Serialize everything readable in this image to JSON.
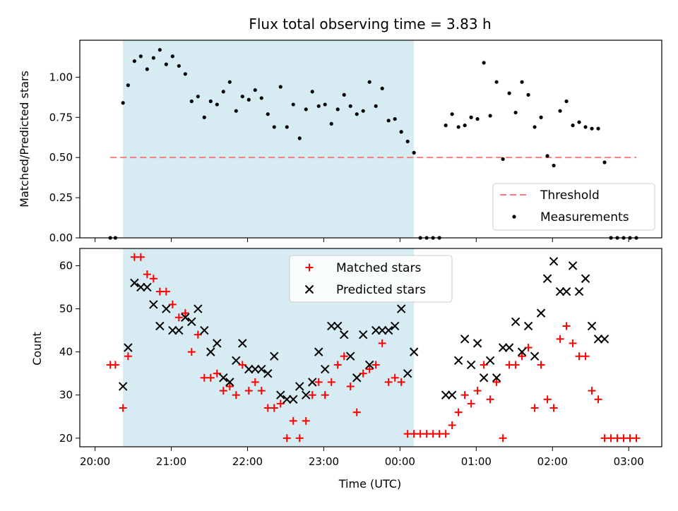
{
  "chart_data": [
    {
      "type": "scatter",
      "title": "Flux total observing time = 3.83 h",
      "xlabel": "",
      "ylabel": "Matched/Predicted stars",
      "ylim": [
        0,
        1.23
      ],
      "yticks": [
        0,
        0.25,
        0.5,
        0.75,
        1.0
      ],
      "ytick_labels": [
        "0.00",
        "0.25",
        "0.50",
        "0.75",
        "1.00"
      ],
      "grid": false,
      "legend_position": "bottom-right",
      "shaded_region": {
        "from": "20:22",
        "to": "00:11",
        "color": "#add8e6"
      },
      "threshold": {
        "name": "Threshold",
        "from": "20:12",
        "to": "03:06",
        "value": 0.5,
        "color": "#f08080"
      },
      "series": [
        {
          "name": "Measurements",
          "color": "#000000",
          "points": [
            [
              "20:12",
              0
            ],
            [
              "20:16",
              0
            ],
            [
              "20:22",
              0.84
            ],
            [
              "20:26",
              0.95
            ],
            [
              "20:31",
              1.1
            ],
            [
              "20:36",
              1.13
            ],
            [
              "20:41",
              1.05
            ],
            [
              "20:46",
              1.12
            ],
            [
              "20:51",
              1.17
            ],
            [
              "20:56",
              1.08
            ],
            [
              "21:01",
              1.13
            ],
            [
              "21:06",
              1.07
            ],
            [
              "21:11",
              1.02
            ],
            [
              "21:16",
              0.85
            ],
            [
              "21:21",
              0.88
            ],
            [
              "21:26",
              0.75
            ],
            [
              "21:31",
              0.85
            ],
            [
              "21:36",
              0.83
            ],
            [
              "21:41",
              0.91
            ],
            [
              "21:46",
              0.97
            ],
            [
              "21:51",
              0.79
            ],
            [
              "21:56",
              0.88
            ],
            [
              "22:01",
              0.86
            ],
            [
              "22:06",
              0.92
            ],
            [
              "22:11",
              0.87
            ],
            [
              "22:16",
              0.77
            ],
            [
              "22:21",
              0.69
            ],
            [
              "22:26",
              0.94
            ],
            [
              "22:31",
              0.69
            ],
            [
              "22:36",
              0.83
            ],
            [
              "22:41",
              0.62
            ],
            [
              "22:46",
              0.8
            ],
            [
              "22:51",
              0.91
            ],
            [
              "22:56",
              0.82
            ],
            [
              "23:01",
              0.83
            ],
            [
              "23:06",
              0.71
            ],
            [
              "23:11",
              0.8
            ],
            [
              "23:16",
              0.89
            ],
            [
              "23:21",
              0.82
            ],
            [
              "23:26",
              0.77
            ],
            [
              "23:31",
              0.79
            ],
            [
              "23:36",
              0.97
            ],
            [
              "23:41",
              0.82
            ],
            [
              "23:46",
              0.93
            ],
            [
              "23:51",
              0.73
            ],
            [
              "23:56",
              0.74
            ],
            [
              "00:01",
              0.66
            ],
            [
              "00:06",
              0.6
            ],
            [
              "00:11",
              0.53
            ],
            [
              "00:16",
              0
            ],
            [
              "00:21",
              0
            ],
            [
              "00:26",
              0
            ],
            [
              "00:31",
              0
            ],
            [
              "00:36",
              0.7
            ],
            [
              "00:41",
              0.77
            ],
            [
              "00:46",
              0.69
            ],
            [
              "00:51",
              0.7
            ],
            [
              "00:56",
              0.75
            ],
            [
              "01:01",
              0.74
            ],
            [
              "01:06",
              1.09
            ],
            [
              "01:11",
              0.76
            ],
            [
              "01:16",
              0.97
            ],
            [
              "01:21",
              0.49
            ],
            [
              "01:26",
              0.9
            ],
            [
              "01:31",
              0.78
            ],
            [
              "01:36",
              0.97
            ],
            [
              "01:41",
              0.89
            ],
            [
              "01:46",
              0.69
            ],
            [
              "01:51",
              0.75
            ],
            [
              "01:56",
              0.51
            ],
            [
              "02:01",
              0.45
            ],
            [
              "02:06",
              0.79
            ],
            [
              "02:11",
              0.85
            ],
            [
              "02:16",
              0.7
            ],
            [
              "02:21",
              0.72
            ],
            [
              "02:26",
              0.69
            ],
            [
              "02:31",
              0.68
            ],
            [
              "02:36",
              0.68
            ],
            [
              "02:41",
              0.47
            ],
            [
              "02:46",
              0
            ],
            [
              "02:51",
              0
            ],
            [
              "02:56",
              0
            ],
            [
              "03:01",
              0
            ],
            [
              "03:06",
              0
            ]
          ]
        }
      ]
    },
    {
      "type": "scatter",
      "title": "",
      "xlabel": "Time (UTC)",
      "ylabel": "Count",
      "xlim": [
        "19:48",
        "03:26"
      ],
      "ylim": [
        18,
        64
      ],
      "yticks": [
        20,
        30,
        40,
        50,
        60
      ],
      "xticks": [
        "20:00",
        "21:00",
        "22:00",
        "23:00",
        "00:00",
        "01:00",
        "02:00",
        "03:00"
      ],
      "grid": false,
      "legend_position": "top-center",
      "shaded_region": {
        "from": "20:22",
        "to": "00:11",
        "color": "#add8e6"
      },
      "series": [
        {
          "name": "Matched stars",
          "color": "#ff0000",
          "marker": "+",
          "points": [
            [
              "20:12",
              37
            ],
            [
              "20:16",
              37
            ],
            [
              "20:22",
              27
            ],
            [
              "20:26",
              39
            ],
            [
              "20:31",
              62
            ],
            [
              "20:36",
              62
            ],
            [
              "20:41",
              58
            ],
            [
              "20:46",
              57
            ],
            [
              "20:51",
              54
            ],
            [
              "20:56",
              54
            ],
            [
              "21:01",
              51
            ],
            [
              "21:06",
              48
            ],
            [
              "21:11",
              49
            ],
            [
              "21:16",
              40
            ],
            [
              "21:21",
              44
            ],
            [
              "21:26",
              34
            ],
            [
              "21:31",
              34
            ],
            [
              "21:36",
              35
            ],
            [
              "21:41",
              31
            ],
            [
              "21:46",
              32
            ],
            [
              "21:51",
              30
            ],
            [
              "21:56",
              37
            ],
            [
              "22:01",
              31
            ],
            [
              "22:06",
              33
            ],
            [
              "22:11",
              31
            ],
            [
              "22:16",
              27
            ],
            [
              "22:21",
              27
            ],
            [
              "22:26",
              28
            ],
            [
              "22:31",
              20
            ],
            [
              "22:36",
              24
            ],
            [
              "22:41",
              20
            ],
            [
              "22:46",
              24
            ],
            [
              "22:51",
              30
            ],
            [
              "22:56",
              33
            ],
            [
              "23:01",
              30
            ],
            [
              "23:06",
              33
            ],
            [
              "23:11",
              37
            ],
            [
              "23:16",
              39
            ],
            [
              "23:21",
              32
            ],
            [
              "23:26",
              26
            ],
            [
              "23:31",
              35
            ],
            [
              "23:36",
              36
            ],
            [
              "23:41",
              37
            ],
            [
              "23:46",
              42
            ],
            [
              "23:51",
              33
            ],
            [
              "23:56",
              34
            ],
            [
              "00:01",
              33
            ],
            [
              "00:06",
              21
            ],
            [
              "00:11",
              21
            ],
            [
              "00:16",
              21
            ],
            [
              "00:21",
              21
            ],
            [
              "00:26",
              21
            ],
            [
              "00:31",
              21
            ],
            [
              "00:36",
              21
            ],
            [
              "00:41",
              23
            ],
            [
              "00:46",
              26
            ],
            [
              "00:51",
              30
            ],
            [
              "00:56",
              28
            ],
            [
              "01:01",
              31
            ],
            [
              "01:06",
              37
            ],
            [
              "01:11",
              29
            ],
            [
              "01:16",
              33
            ],
            [
              "01:21",
              20
            ],
            [
              "01:26",
              37
            ],
            [
              "01:31",
              37
            ],
            [
              "01:36",
              39
            ],
            [
              "01:41",
              41
            ],
            [
              "01:46",
              27
            ],
            [
              "01:51",
              37
            ],
            [
              "01:56",
              29
            ],
            [
              "02:01",
              27
            ],
            [
              "02:06",
              43
            ],
            [
              "02:11",
              46
            ],
            [
              "02:16",
              42
            ],
            [
              "02:21",
              39
            ],
            [
              "02:26",
              39
            ],
            [
              "02:31",
              31
            ],
            [
              "02:36",
              29
            ],
            [
              "02:41",
              20
            ],
            [
              "02:46",
              20
            ],
            [
              "02:51",
              20
            ],
            [
              "02:56",
              20
            ],
            [
              "03:01",
              20
            ],
            [
              "03:06",
              20
            ]
          ]
        },
        {
          "name": "Predicted stars",
          "color": "#000000",
          "marker": "x",
          "points": [
            [
              "20:22",
              32
            ],
            [
              "20:26",
              41
            ],
            [
              "20:31",
              56
            ],
            [
              "20:36",
              55
            ],
            [
              "20:41",
              55
            ],
            [
              "20:46",
              51
            ],
            [
              "20:51",
              46
            ],
            [
              "20:56",
              50
            ],
            [
              "21:01",
              45
            ],
            [
              "21:06",
              45
            ],
            [
              "21:11",
              48
            ],
            [
              "21:16",
              47
            ],
            [
              "21:21",
              50
            ],
            [
              "21:26",
              45
            ],
            [
              "21:31",
              40
            ],
            [
              "21:36",
              42
            ],
            [
              "21:41",
              34
            ],
            [
              "21:46",
              33
            ],
            [
              "21:51",
              38
            ],
            [
              "21:56",
              42
            ],
            [
              "22:01",
              36
            ],
            [
              "22:06",
              36
            ],
            [
              "22:11",
              36
            ],
            [
              "22:16",
              35
            ],
            [
              "22:21",
              39
            ],
            [
              "22:26",
              30
            ],
            [
              "22:31",
              29
            ],
            [
              "22:36",
              29
            ],
            [
              "22:41",
              32
            ],
            [
              "22:46",
              30
            ],
            [
              "22:51",
              33
            ],
            [
              "22:56",
              40
            ],
            [
              "23:01",
              36
            ],
            [
              "23:06",
              46
            ],
            [
              "23:11",
              46
            ],
            [
              "23:16",
              44
            ],
            [
              "23:21",
              39
            ],
            [
              "23:26",
              34
            ],
            [
              "23:31",
              44
            ],
            [
              "23:36",
              37
            ],
            [
              "23:41",
              45
            ],
            [
              "23:46",
              45
            ],
            [
              "23:51",
              45
            ],
            [
              "23:56",
              46
            ],
            [
              "00:01",
              50
            ],
            [
              "00:06",
              35
            ],
            [
              "00:11",
              40
            ],
            [
              "00:36",
              30
            ],
            [
              "00:41",
              30
            ],
            [
              "00:46",
              38
            ],
            [
              "00:51",
              43
            ],
            [
              "00:56",
              37
            ],
            [
              "01:01",
              42
            ],
            [
              "01:06",
              34
            ],
            [
              "01:11",
              38
            ],
            [
              "01:16",
              34
            ],
            [
              "01:21",
              41
            ],
            [
              "01:26",
              41
            ],
            [
              "01:31",
              47
            ],
            [
              "01:36",
              40
            ],
            [
              "01:41",
              46
            ],
            [
              "01:46",
              39
            ],
            [
              "01:51",
              49
            ],
            [
              "01:56",
              57
            ],
            [
              "02:01",
              61
            ],
            [
              "02:06",
              54
            ],
            [
              "02:11",
              54
            ],
            [
              "02:16",
              60
            ],
            [
              "02:21",
              54
            ],
            [
              "02:26",
              57
            ],
            [
              "02:31",
              46
            ],
            [
              "02:36",
              43
            ],
            [
              "02:41",
              43
            ]
          ]
        }
      ]
    }
  ]
}
